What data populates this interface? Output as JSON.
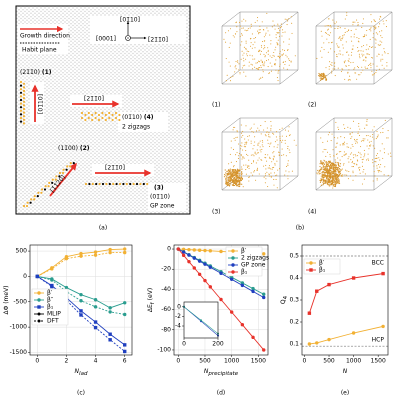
{
  "panel_a": {
    "caption": "(a)",
    "axis_up": "[01̄10]",
    "axis_out": "[0001]",
    "axis_right": "[21̄1̄0]",
    "legend_growth": "Growth direction",
    "legend_habit": "Habit plane",
    "p1_plane": "(21̄1̄0)",
    "p1_id": "(1)",
    "p1_dir": "[01̄10]",
    "p4_dir": "[21̄1̄0]",
    "p4_plane": "(01̄10)",
    "p4_id": "(4)",
    "p4_note": "2 zigzags",
    "p2_plane": "(11̄00)",
    "p2_id": "(2)",
    "p2_dir": "[1̄1̄20]",
    "p3_dir": "[21̄1̄0]",
    "p3_id": "(3)",
    "p3_plane": "(01̄10)",
    "p3_note": "GP zone"
  },
  "panel_b": {
    "caption": "(b)",
    "labels": [
      "(1)",
      "(2)",
      "(3)",
      "(4)"
    ]
  },
  "chart_data": [
    {
      "type": "line",
      "caption": "(c)",
      "xlabel": "N",
      "xlabel_sub": "lad",
      "ylabel": "ΔΦ (meV)",
      "x": [
        0,
        1,
        2,
        3,
        4,
        5,
        6
      ],
      "xlim": [
        -0.5,
        6.5
      ],
      "ylim": [
        -1550,
        620
      ],
      "xticks": [
        0,
        2,
        4,
        6
      ],
      "yticks": [
        -1500,
        -1000,
        -500,
        0,
        500
      ],
      "grid": true,
      "legend": "center left",
      "series": [
        {
          "name": "β′",
          "color": "#f2b134",
          "marker": "circle",
          "values": [
            0,
            170,
            390,
            450,
            480,
            530,
            540
          ],
          "dft_values": [
            0,
            150,
            350,
            400,
            420,
            470,
            470
          ]
        },
        {
          "name": "β″",
          "color": "#2a9d8f",
          "marker": "circle",
          "values": [
            0,
            -50,
            -220,
            -360,
            -460,
            -620,
            -520
          ],
          "dft_values": [
            0,
            -70,
            -300,
            -480,
            -600,
            -700,
            -750
          ]
        },
        {
          "name": "β₁",
          "color": "#1f3fbf",
          "marker": "square",
          "values": [
            0,
            -180,
            -420,
            -680,
            -900,
            -1140,
            -1350
          ],
          "dft_values": [
            0,
            -200,
            -470,
            -760,
            -1010,
            -1250,
            -1480
          ]
        }
      ],
      "line_styles": [
        {
          "name": "MLIP",
          "dash": false
        },
        {
          "name": "DFT",
          "dash": true
        }
      ]
    },
    {
      "type": "line",
      "caption": "(d)",
      "xlabel": "N",
      "xlabel_sub": "precipitate",
      "ylabel": "ΔE",
      "ylabel_sub": "f",
      "ylabel_unit": "(eV)",
      "x": [
        0,
        100,
        200,
        300,
        400,
        500,
        600,
        800,
        1000,
        1200,
        1400,
        1600
      ],
      "xlim": [
        -80,
        1680
      ],
      "ylim": [
        -105,
        4
      ],
      "xticks": [
        0,
        500,
        1000,
        1500
      ],
      "yticks": [
        -100,
        -80,
        -60,
        -40,
        -20,
        0
      ],
      "grid": true,
      "legend": "upper right",
      "series": [
        {
          "name": "β′",
          "color": "#f2b134",
          "marker": "circle",
          "values": [
            0,
            -0.3,
            -0.6,
            -0.9,
            -1.2,
            -1.5,
            -1.8,
            -2.4,
            -3,
            -3.6,
            -4.2,
            -4.8
          ]
        },
        {
          "name": "2 zigzags",
          "color": "#2a9d8f",
          "marker": "circle",
          "values": [
            0,
            -2.8,
            -5.6,
            -8.4,
            -11.2,
            -14,
            -16.8,
            -22.4,
            -28,
            -33.6,
            -39.2,
            -44.8
          ]
        },
        {
          "name": "GP zone",
          "color": "#1f3fbf",
          "marker": "circle",
          "values": [
            0,
            -3,
            -6,
            -9,
            -12,
            -15,
            -18,
            -24,
            -30,
            -36,
            -42,
            -48
          ]
        },
        {
          "name": "β₁",
          "color": "#e8322b",
          "marker": "circle",
          "values": [
            0,
            -6.25,
            -12.5,
            -18.75,
            -25,
            -31.25,
            -37.5,
            -50,
            -62.5,
            -75,
            -87.5,
            -100
          ]
        }
      ]
    },
    {
      "type": "line",
      "caption": "(e)",
      "xlabel": "N",
      "ylabel": "Q",
      "ylabel_sub": "4",
      "x": [
        100,
        250,
        500,
        1000,
        1600
      ],
      "xlim": [
        -50,
        1700
      ],
      "ylim": [
        0.05,
        0.55
      ],
      "xticks": [
        0,
        500,
        1000,
        1500
      ],
      "yticks": [
        0.1,
        0.2,
        0.3,
        0.4,
        0.5
      ],
      "grid": false,
      "legend": "upper left",
      "series": [
        {
          "name": "β′",
          "color": "#f2b134",
          "marker": "circle",
          "values": [
            0.1,
            0.105,
            0.12,
            0.15,
            0.18
          ]
        },
        {
          "name": "β₁",
          "color": "#e8322b",
          "marker": "square",
          "values": [
            0.24,
            0.34,
            0.37,
            0.4,
            0.42
          ]
        }
      ],
      "reference_lines": [
        {
          "label": "BCC",
          "value": 0.5
        },
        {
          "label": "HCP",
          "value": 0.09
        }
      ]
    },
    {
      "type": "line",
      "x": [
        0,
        100,
        200
      ],
      "xlim": [
        0,
        200
      ],
      "ylim": [
        -6.5,
        1
      ],
      "xticks": [
        0,
        200
      ],
      "yticks": [
        -4,
        -2,
        0
      ],
      "grid": false,
      "series": [
        {
          "color": "#1f3fbf",
          "marker": "circle",
          "values": [
            0,
            -3,
            -6
          ]
        },
        {
          "color": "#2a9d8f",
          "marker": "circle",
          "values": [
            0,
            -2.8,
            -5.6
          ]
        }
      ]
    }
  ]
}
